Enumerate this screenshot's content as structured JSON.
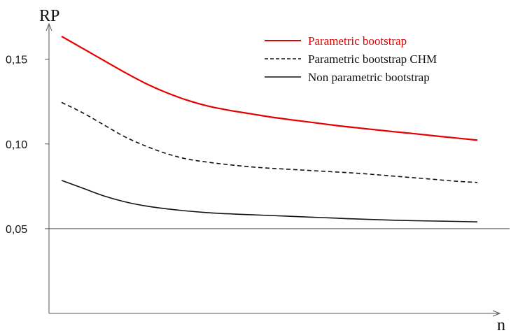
{
  "chart_data": {
    "type": "line",
    "title": "",
    "ylabel": "RP",
    "xlabel": "n",
    "ylim": [
      0.0,
      0.18
    ],
    "x": [
      0,
      1,
      2,
      3,
      4,
      5,
      6,
      7,
      8,
      9,
      10,
      11,
      12,
      13,
      14,
      15,
      16,
      17,
      18,
      19,
      20
    ],
    "yticks": [
      {
        "value": 0.15,
        "label": "0,15"
      },
      {
        "value": 0.1,
        "label": "0,10"
      },
      {
        "value": 0.05,
        "label": "0,05"
      }
    ],
    "reference_line": 0.05,
    "grid": false,
    "legend_position": "top-right",
    "series": [
      {
        "name": "Parametric bootstrap",
        "color": "#e60000",
        "dash": "solid",
        "values": [
          0.1635,
          0.1565,
          0.1495,
          0.1425,
          0.136,
          0.1305,
          0.126,
          0.1225,
          0.12,
          0.118,
          0.116,
          0.1143,
          0.1128,
          0.1112,
          0.1098,
          0.1085,
          0.1072,
          0.106,
          0.1047,
          0.1035,
          0.1022
        ]
      },
      {
        "name": "Parametric bootstrap CHM",
        "color": "#111111",
        "dash": "dashed",
        "values": [
          0.1245,
          0.1185,
          0.1115,
          0.1045,
          0.099,
          0.0945,
          0.0912,
          0.0893,
          0.0878,
          0.0866,
          0.0857,
          0.085,
          0.0843,
          0.0836,
          0.0829,
          0.082,
          0.081,
          0.08,
          0.079,
          0.078,
          0.0773
        ]
      },
      {
        "name": "Non parametric bootstrap",
        "color": "#111111",
        "dash": "solid",
        "values": [
          0.0785,
          0.074,
          0.0695,
          0.066,
          0.0635,
          0.0618,
          0.0605,
          0.0595,
          0.0588,
          0.0583,
          0.0578,
          0.0573,
          0.0568,
          0.0563,
          0.0558,
          0.0554,
          0.055,
          0.0547,
          0.0545,
          0.0543,
          0.054
        ]
      }
    ]
  }
}
